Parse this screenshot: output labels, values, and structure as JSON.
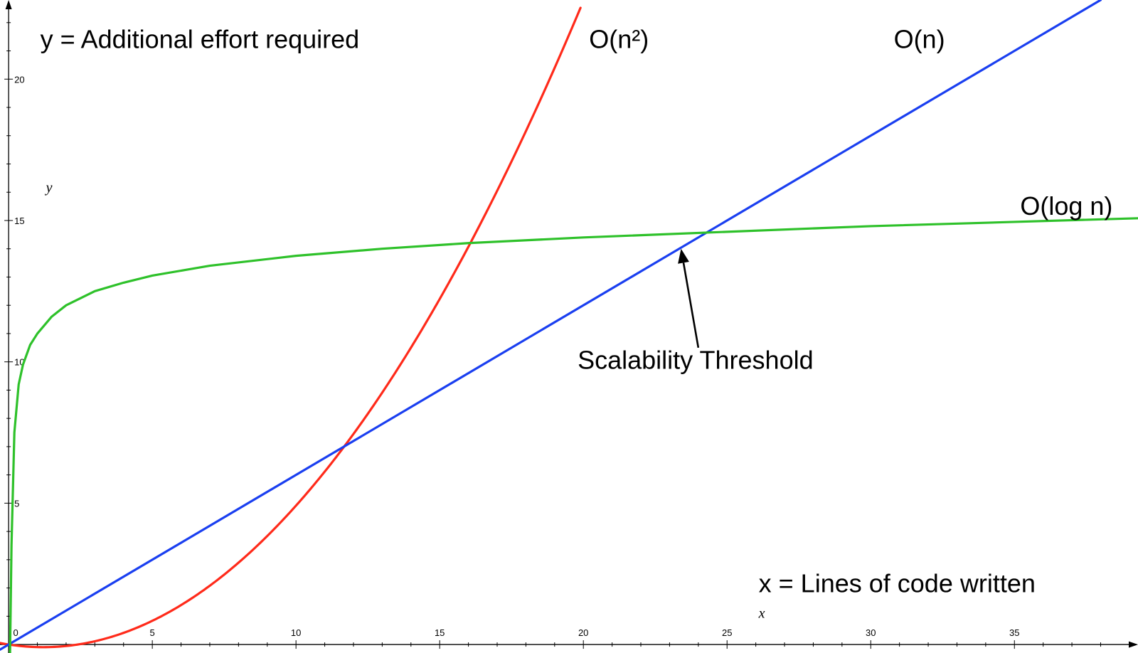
{
  "chart_data": {
    "type": "line",
    "title": "",
    "xlabel": "x",
    "ylabel": "y",
    "xlim": [
      -0.3,
      39.3
    ],
    "ylim": [
      -0.3,
      22.8
    ],
    "x_ticks": [
      "0",
      "5",
      "10",
      "15",
      "20",
      "25",
      "30",
      "35"
    ],
    "y_ticks": [
      "5",
      "10",
      "15",
      "20"
    ],
    "grid": false,
    "legend": "none",
    "series": [
      {
        "name": "O(n²)",
        "color": "#ff2a1a",
        "x": [
          -0.3,
          0,
          1,
          2,
          3,
          4,
          5,
          6,
          7,
          8,
          9,
          10,
          11,
          12,
          13,
          14,
          15,
          16,
          17,
          18,
          19,
          20
        ],
        "y": [
          0.1,
          0,
          -0.27,
          -0.3,
          -0.23,
          0.02,
          0.45,
          0.98,
          1.65,
          2.48,
          3.45,
          4.57,
          5.83,
          7.24,
          8.79,
          10.49,
          12.34,
          14.33,
          16.47,
          18.75,
          21.18,
          23.75
        ]
      },
      {
        "name": "O(n)",
        "color": "#1a3ff0",
        "x": [
          -0.3,
          38
        ],
        "y": [
          -0.18,
          22.8
        ]
      },
      {
        "name": "O(log n)",
        "color": "#2ec12a",
        "x": [
          0.05,
          0.1,
          0.2,
          0.35,
          0.5,
          0.75,
          1,
          1.5,
          2,
          3,
          4,
          5,
          7,
          10,
          13,
          16,
          20,
          25,
          30,
          35,
          39.3
        ],
        "y": [
          -0.3,
          3.5,
          7.5,
          9.2,
          9.9,
          10.6,
          11.0,
          11.6,
          12.0,
          12.5,
          12.8,
          13.05,
          13.4,
          13.75,
          14.0,
          14.2,
          14.4,
          14.6,
          14.8,
          14.95,
          15.08
        ]
      }
    ],
    "annotations": [
      {
        "text": "y = Additional effort required",
        "x": 1.1,
        "y": 21.1
      },
      {
        "text": "x = Lines of code written",
        "x": 26.1,
        "y": 1.85
      },
      {
        "text": "O(n²)",
        "x": 20.2,
        "y": 21.1
      },
      {
        "text": "O(n)",
        "x": 30.8,
        "y": 21.1
      },
      {
        "text": "O(log n)",
        "x": 35.2,
        "y": 15.2
      },
      {
        "text": "Scalability Threshold",
        "x": 19.8,
        "y": 9.75
      }
    ],
    "arrow": {
      "from": [
        24.0,
        10.5
      ],
      "to": [
        23.4,
        14.0
      ]
    }
  }
}
